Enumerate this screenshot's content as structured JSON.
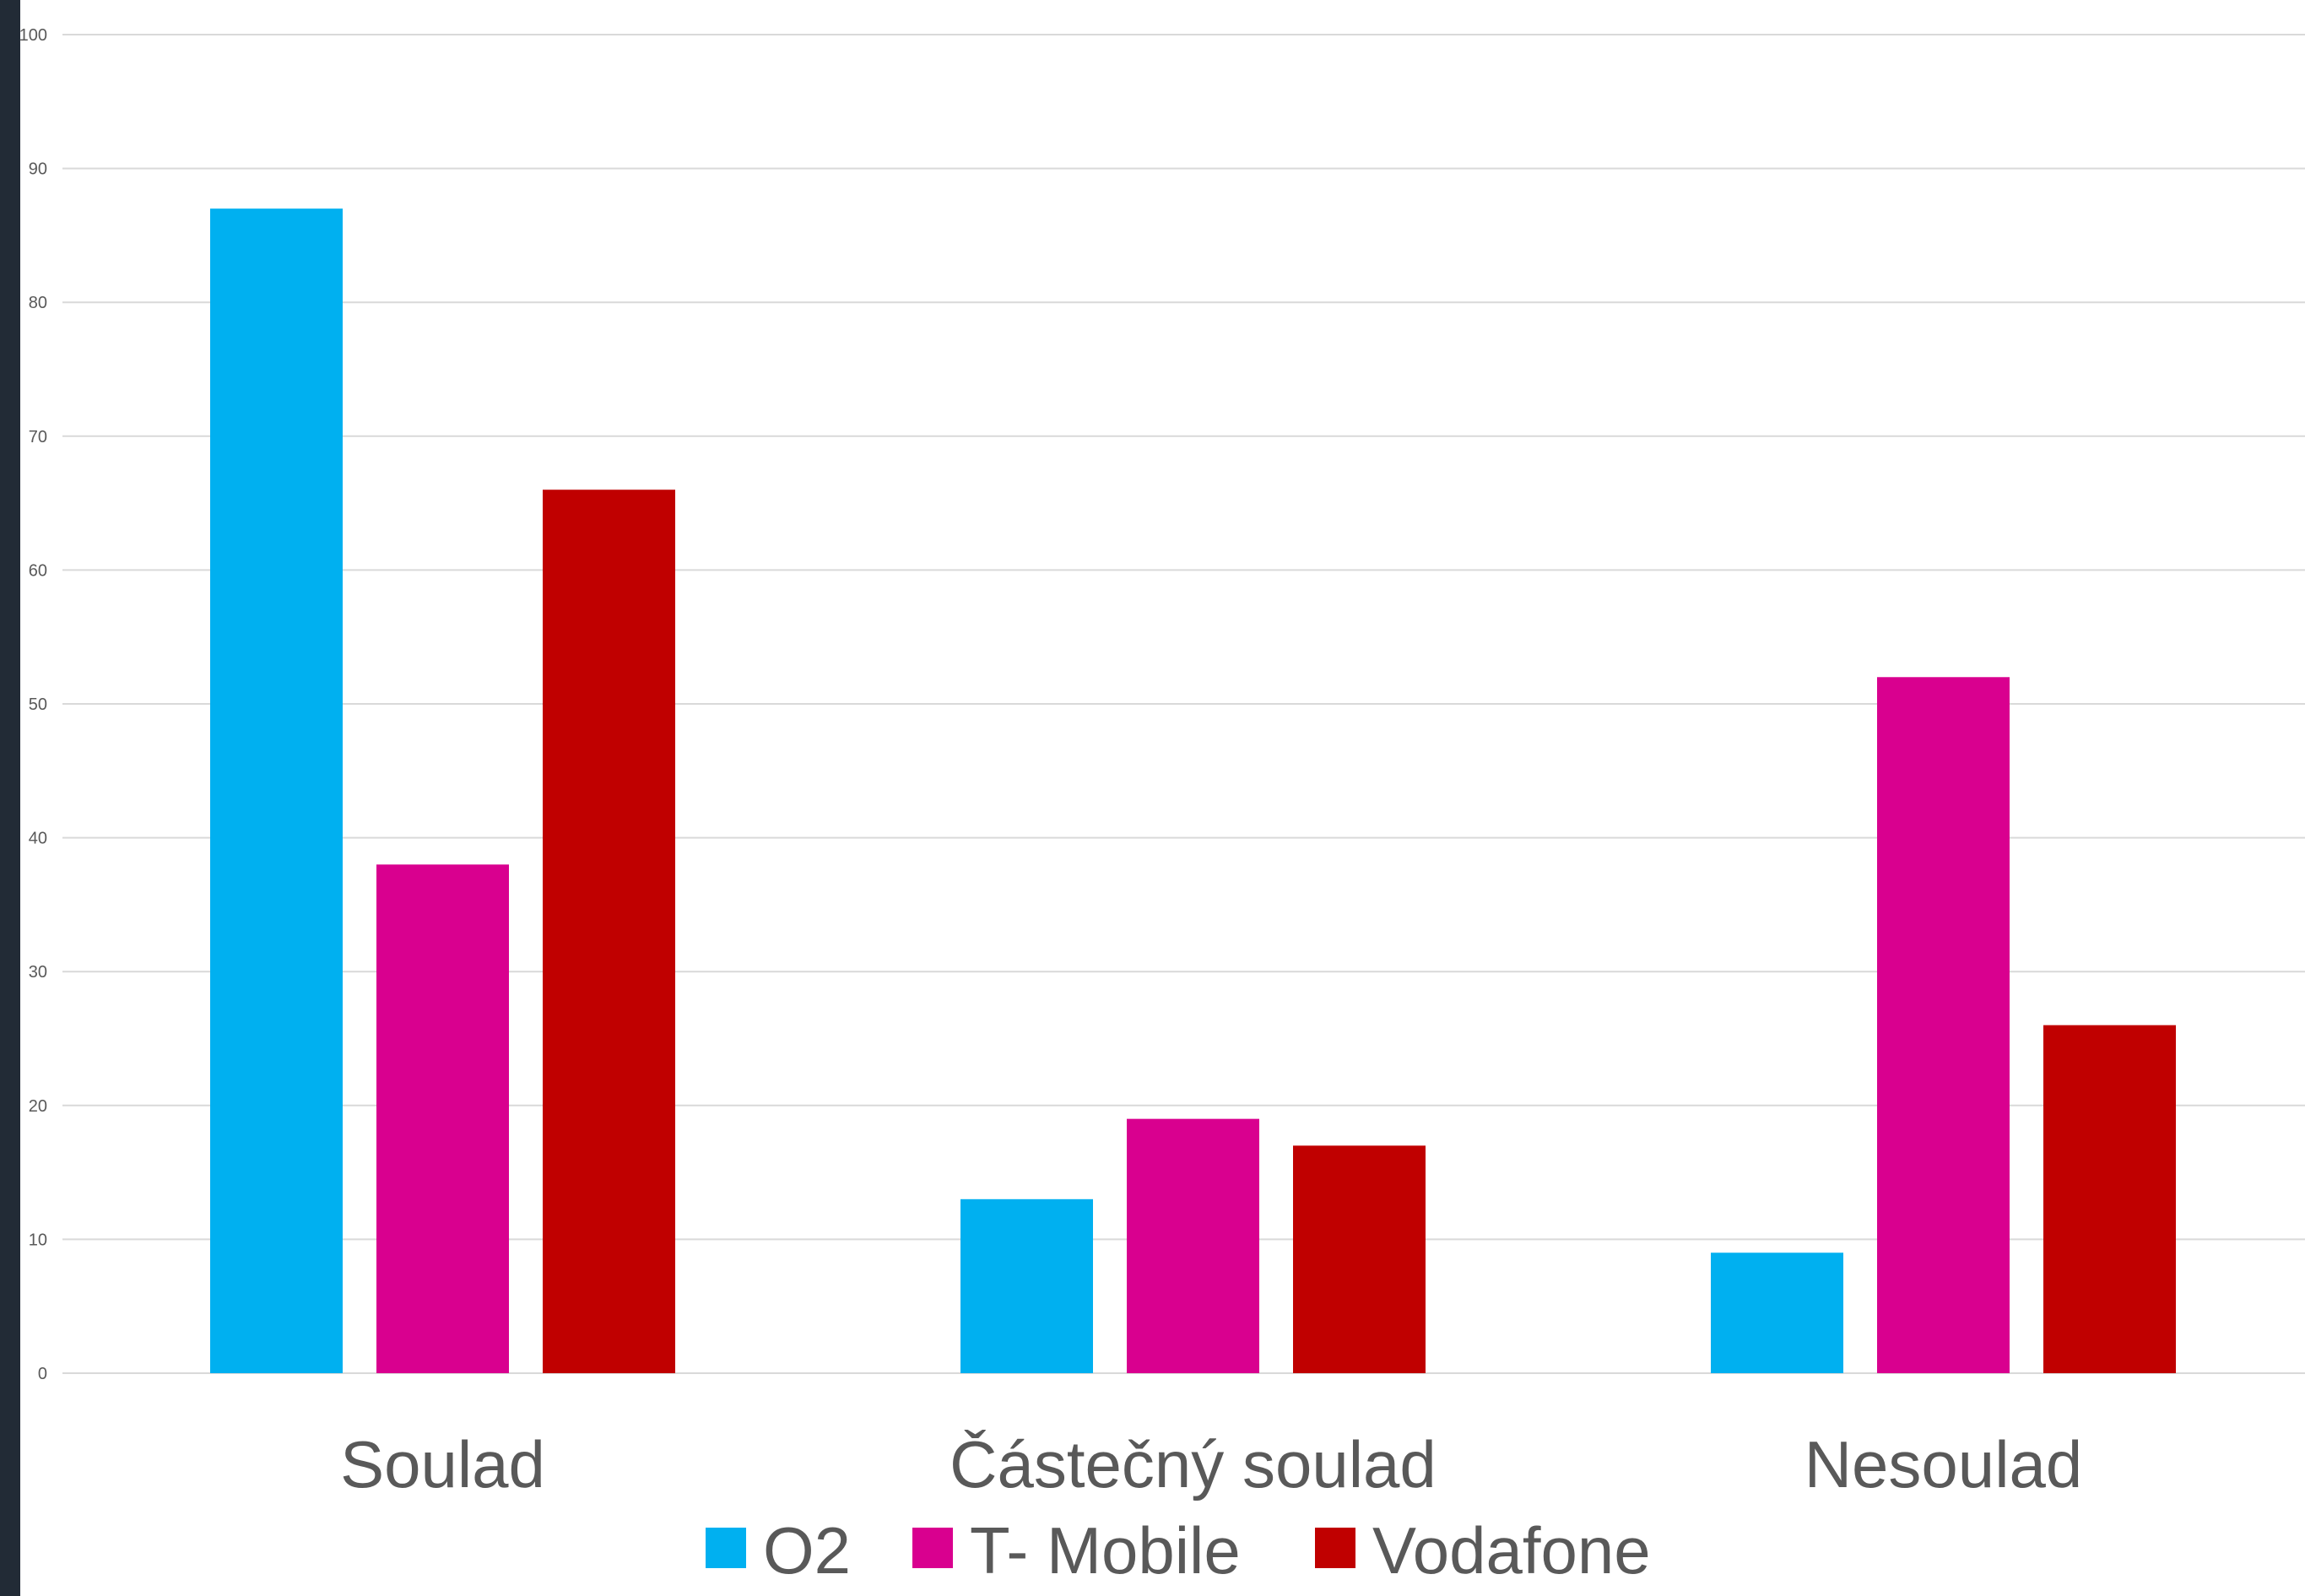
{
  "chart_data": {
    "type": "bar",
    "categories": [
      "Soulad",
      "Částečný soulad",
      "Nesoulad"
    ],
    "series": [
      {
        "name": "O2",
        "values": [
          87,
          13,
          9
        ],
        "color": "#00b0f0"
      },
      {
        "name": "T- Mobile",
        "values": [
          38,
          19,
          52
        ],
        "color": "#d9008f"
      },
      {
        "name": "Vodafone",
        "values": [
          66,
          17,
          26
        ],
        "color": "#c00000"
      }
    ],
    "yticks": [
      "0",
      "10",
      "20",
      "30",
      "40",
      "50",
      "60",
      "70",
      "80",
      "90",
      "100"
    ],
    "ylim": [
      0,
      100
    ],
    "grid": true,
    "legend": "bottom"
  }
}
